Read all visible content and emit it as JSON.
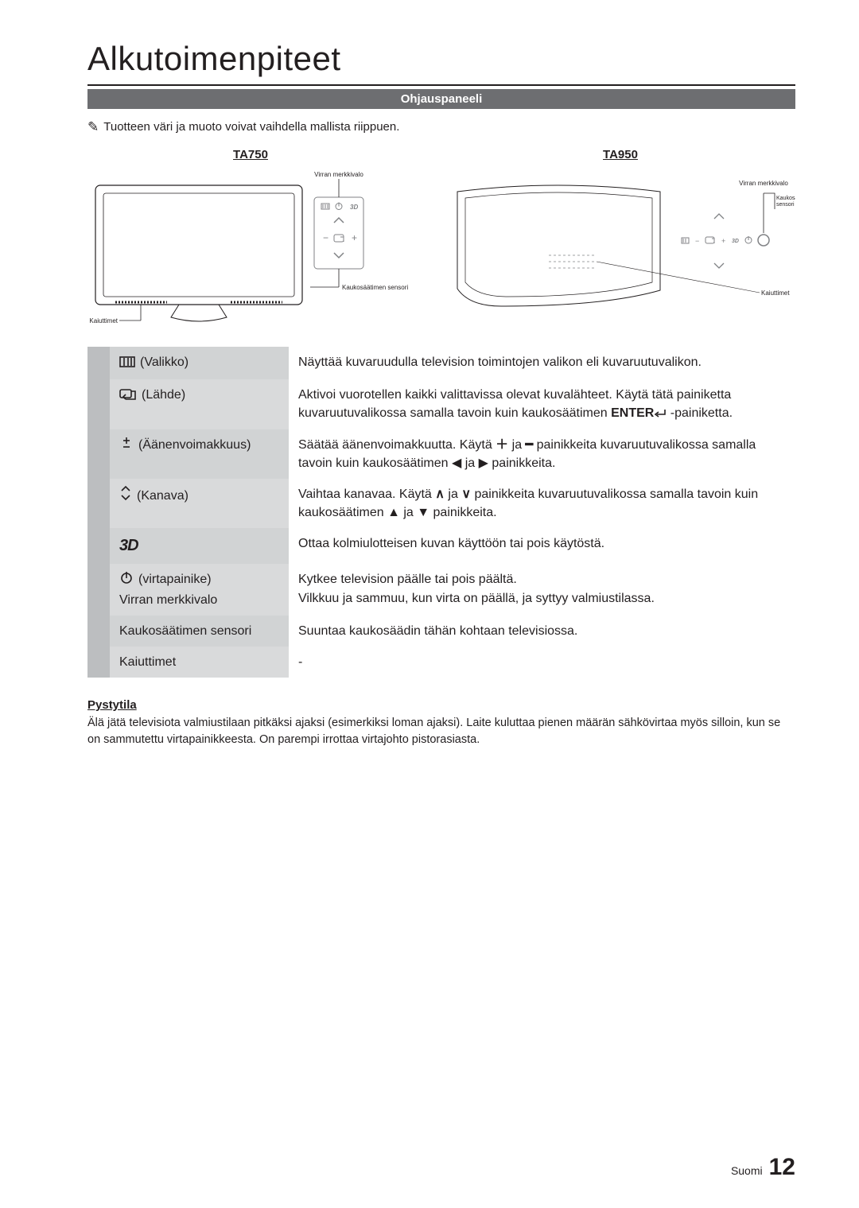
{
  "title": "Alkutoimenpiteet",
  "section_bar": "Ohjauspaneeli",
  "note_glyph": "✎",
  "note_text": "Tuotteen väri ja muoto voivat vaihdella mallista riippuen.",
  "diagrams": {
    "left_label": "TA750",
    "right_label": "TA950",
    "callout_power": "Virran merkkivalo",
    "callout_remote": "Kaukosäätimen sensori",
    "callout_speakers": "Kaiuttimet"
  },
  "rows": [
    {
      "icon": "menu",
      "label": "(Valikko)",
      "value": "Näyttää kuvaruudulla television toimintojen valikon eli kuvaruutuvalikon."
    },
    {
      "icon": "source",
      "label": "(Lähde)",
      "value": "Aktivoi vuorotellen kaikki valittavissa olevat kuvalähteet. Käytä tätä painiketta kuvaruutuvalikossa samalla tavoin kuin kaukosäätimen ENTER⏎ -painiketta."
    },
    {
      "icon": "vol",
      "label": "(Äänenvoimakkuus)",
      "value_html": "Säätää äänenvoimakkuutta. Käytä <b>＋</b> ja <b>━</b> painikkeita kuvaruutuvalikossa samalla tavoin kuin kaukosäätimen ◀ ja ▶ painikkeita."
    },
    {
      "icon": "ch",
      "label": "(Kanava)",
      "value_html": "Vaihtaa kanavaa. Käytä <b>∧</b> ja <b>∨</b> painikkeita kuvaruutuvalikossa samalla tavoin kuin kaukosäätimen ▲ ja ▼ painikkeita."
    },
    {
      "icon": "3d",
      "label": "",
      "value": "Ottaa kolmiulotteisen kuvan käyttöön tai pois käytöstä."
    },
    {
      "icon": "power",
      "label_html": "(virtapainike)<br>Virran merkkivalo",
      "value_html": "Kytkee television päälle tai pois päältä.<br>Vilkkuu ja sammuu, kun virta on päällä, ja syttyy valmiustilassa."
    },
    {
      "icon": "",
      "label": "Kaukosäätimen sensori",
      "value": "Suuntaa kaukosäädin tähän kohtaan televisiossa."
    },
    {
      "icon": "",
      "label": "Kaiuttimet",
      "value": "-"
    }
  ],
  "standby_heading": "Pystytila",
  "standby_text": "Älä jätä televisiota valmiustilaan pitkäksi ajaksi (esimerkiksi loman ajaksi). Laite kuluttaa pienen määrän sähkövirtaa myös silloin, kun se on sammutettu virtapainikkeesta. On parempi irrottaa virtajohto pistorasiasta.",
  "footer_lang": "Suomi",
  "footer_page": "12",
  "colors": {
    "bar": "#6d6e71",
    "stub": "#bcbec0",
    "lbl": "#d1d3d4",
    "text": "#231f20"
  }
}
